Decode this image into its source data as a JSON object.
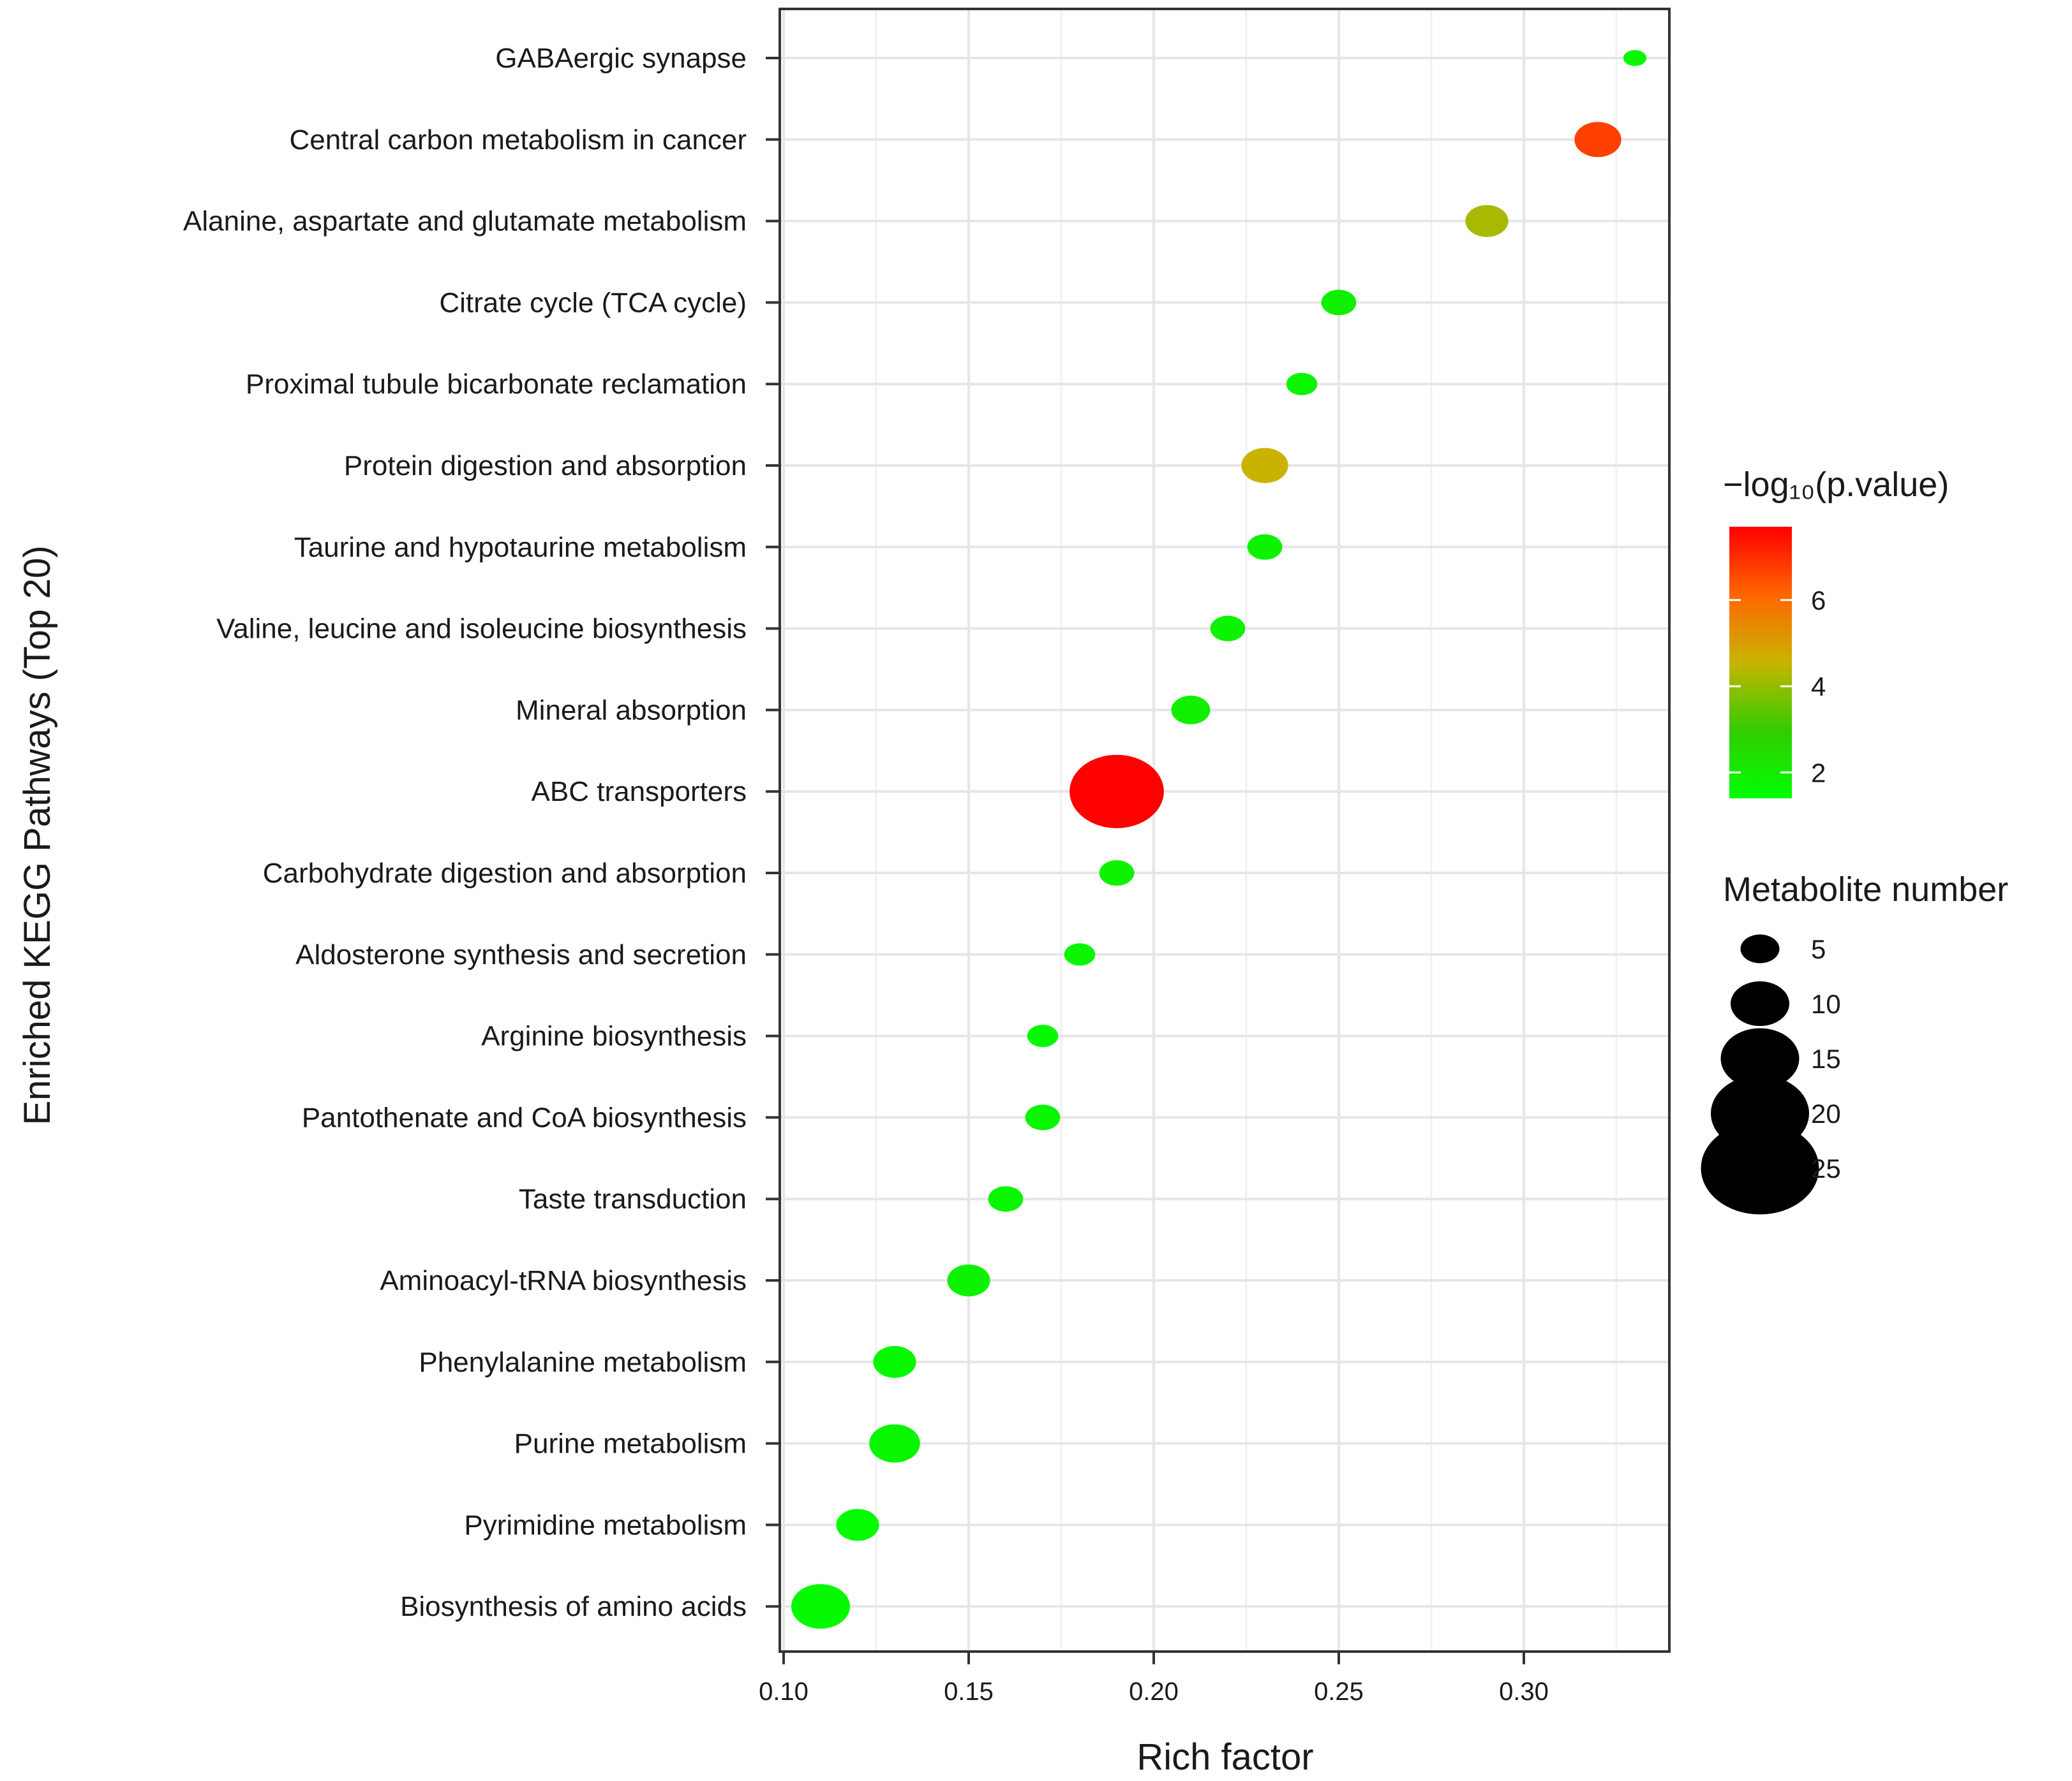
{
  "chart_data": {
    "type": "scatter",
    "title": "",
    "xlabel": "Rich factor",
    "ylabel": "Enriched KEGG Pathways (Top 20)",
    "xlim": [
      0.1,
      0.34
    ],
    "xticks": [
      0.1,
      0.15,
      0.2,
      0.25,
      0.3
    ],
    "xtick_labels": [
      "0.10",
      "0.15",
      "0.20",
      "0.25",
      "0.30"
    ],
    "grid": true,
    "categories": [
      "GABAergic synapse",
      "Central carbon metabolism in cancer",
      "Alanine, aspartate and glutamate metabolism",
      "Citrate cycle (TCA cycle)",
      "Proximal tubule bicarbonate reclamation",
      "Protein digestion and absorption",
      "Taurine and hypotaurine metabolism",
      "Valine, leucine and isoleucine biosynthesis",
      "Mineral absorption",
      "ABC transporters",
      "Carbohydrate digestion and absorption",
      "Aldosterone synthesis and secretion",
      "Arginine biosynthesis",
      "Pantothenate and CoA biosynthesis",
      "Taste transduction",
      "Aminoacyl-tRNA biosynthesis",
      "Phenylalanine metabolism",
      "Purine metabolism",
      "Pyrimidine metabolism",
      "Biosynthesis of amino acids"
    ],
    "rich_factor": [
      0.33,
      0.32,
      0.29,
      0.25,
      0.24,
      0.23,
      0.23,
      0.22,
      0.21,
      0.19,
      0.19,
      0.18,
      0.17,
      0.17,
      0.16,
      0.15,
      0.13,
      0.13,
      0.12,
      0.11
    ],
    "metabolite_number": [
      1,
      7,
      6,
      4,
      3,
      7,
      4,
      4,
      5,
      19,
      4,
      3,
      3,
      4,
      4,
      6,
      6,
      8,
      6,
      10
    ],
    "neg_log10_pvalue": [
      1.6,
      6.7,
      4.2,
      1.9,
      1.7,
      4.6,
      1.8,
      1.8,
      1.9,
      7.7,
      1.8,
      1.7,
      1.6,
      1.7,
      1.7,
      1.8,
      1.6,
      1.7,
      1.5,
      1.6
    ],
    "color_legend": {
      "title": "−log₁₀(p.value)",
      "min": 1.4,
      "max": 7.7,
      "ticks": [
        2,
        4,
        6
      ],
      "tick_labels": [
        "2",
        "4",
        "6"
      ],
      "colors": [
        "#00ff00",
        "#33cc00",
        "#c8b400",
        "#ff6600",
        "#ff0000"
      ],
      "placement": "right"
    },
    "size_legend": {
      "title": "Metabolite number",
      "values": [
        5,
        10,
        15,
        20,
        25
      ],
      "labels": [
        "5",
        "10",
        "15",
        "20",
        "25"
      ],
      "color": "#000000",
      "placement": "right"
    }
  }
}
